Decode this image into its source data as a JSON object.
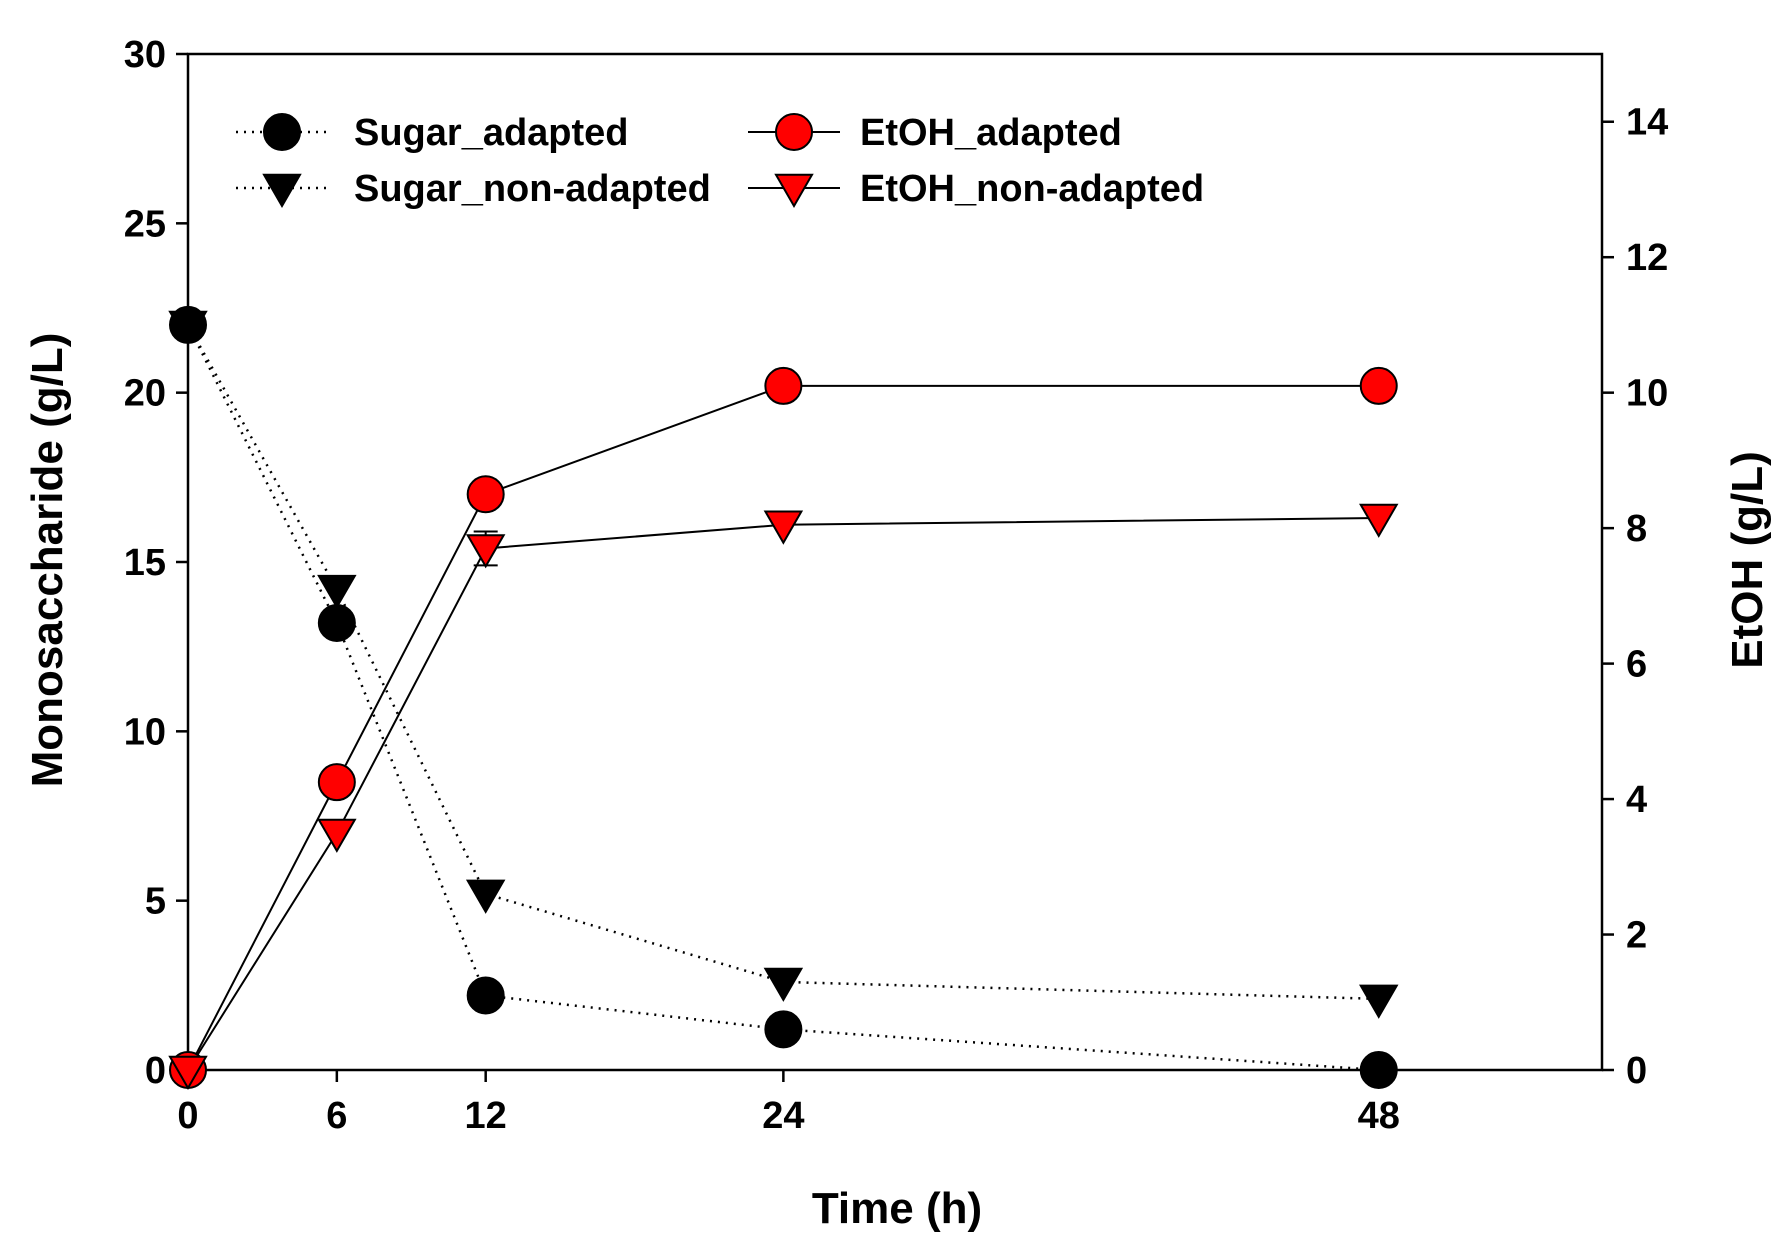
{
  "chart_data": {
    "type": "line",
    "title": "",
    "xlabel": "Time (h)",
    "ylabel": "Monosaccharide (g/L)",
    "y2label": "EtOH (g/L)",
    "x_ticks": [
      "0",
      "6",
      "12",
      "24",
      "48"
    ],
    "x_positions": [
      0,
      6,
      12,
      24,
      48
    ],
    "ylim": [
      0,
      30
    ],
    "y_ticks": [
      0,
      5,
      10,
      15,
      20,
      25,
      30
    ],
    "y2lim": [
      0,
      15
    ],
    "y2_ticks": [
      0,
      2,
      4,
      6,
      8,
      10,
      12,
      14
    ],
    "legend_position": "top-left",
    "series": [
      {
        "name": "Sugar_adapted",
        "axis": "left",
        "marker": "circle",
        "color": "#000000",
        "line": "dotted",
        "values": [
          22.0,
          13.2,
          2.2,
          1.2,
          0.0
        ]
      },
      {
        "name": "Sugar_non-adapted",
        "axis": "left",
        "marker": "triangle-down",
        "color": "#000000",
        "line": "dotted",
        "values": [
          22.0,
          14.2,
          5.2,
          2.6,
          2.1
        ]
      },
      {
        "name": "EtOH_adapted",
        "axis": "right",
        "marker": "circle",
        "color": "#ff0000",
        "line": "solid",
        "values": [
          0.0,
          4.25,
          8.5,
          10.1,
          10.1
        ]
      },
      {
        "name": "EtOH_non-adapted",
        "axis": "right",
        "marker": "triangle-down",
        "color": "#ff0000",
        "line": "solid",
        "values": [
          0.0,
          3.5,
          7.7,
          8.05,
          8.15
        ],
        "error": [
          0,
          0,
          0.25,
          0,
          0
        ]
      }
    ]
  }
}
